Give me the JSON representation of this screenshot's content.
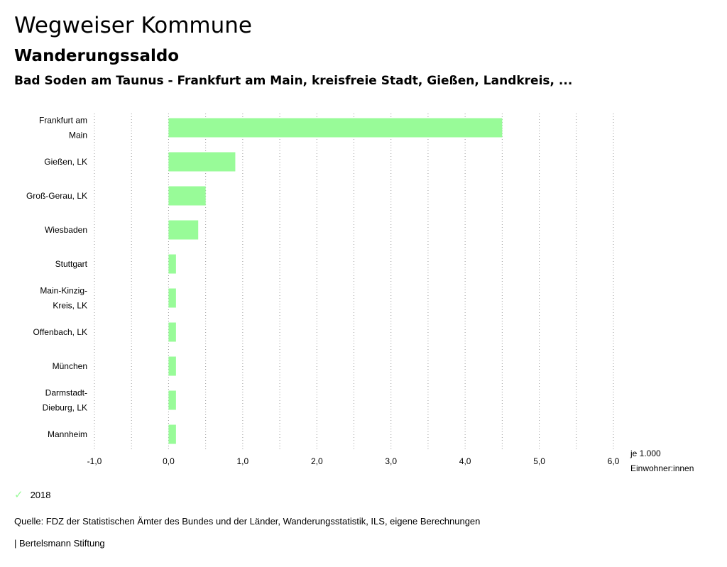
{
  "header": {
    "title": "Wegweiser Kommune",
    "subtitle": "Wanderungssaldo",
    "region": "Bad Soden am Taunus - Frankfurt am Main, kreisfreie Stadt, Gießen, Landkreis, ..."
  },
  "legend": {
    "label": "2018",
    "icon": "check-icon"
  },
  "footer": {
    "source": "Quelle: FDZ der Statistischen Ämter des Bundes und der Länder, Wanderungsstatistik, ILS, eigene Berechnungen",
    "brand": "| Bertelsmann Stiftung"
  },
  "chart_data": {
    "type": "bar",
    "orientation": "horizontal",
    "categories": [
      [
        "Frankfurt am",
        "Main"
      ],
      [
        "Gießen, LK"
      ],
      [
        "Groß-Gerau, LK"
      ],
      [
        "Wiesbaden"
      ],
      [
        "Stuttgart"
      ],
      [
        "Main-Kinzig-",
        "Kreis, LK"
      ],
      [
        "Offenbach, LK"
      ],
      [
        "München"
      ],
      [
        "Darmstadt-",
        "Dieburg, LK"
      ],
      [
        "Mannheim"
      ]
    ],
    "series": [
      {
        "name": "2018",
        "values": [
          4.5,
          0.9,
          0.5,
          0.4,
          0.1,
          0.1,
          0.1,
          0.1,
          0.1,
          0.1
        ],
        "color": "#98fb98"
      }
    ],
    "xlim": [
      -1.0,
      6.0
    ],
    "ticks": [
      "-1,0",
      "0,0",
      "1,0",
      "2,0",
      "3,0",
      "4,0",
      "5,0",
      "6,0"
    ],
    "tick_values": [
      -1,
      0,
      1,
      2,
      3,
      4,
      5,
      6
    ],
    "unit_label": [
      "je 1.000",
      "Einwohner:innen"
    ],
    "grid": true,
    "grid_style": "dotted",
    "legend_position": "bottom-left"
  }
}
